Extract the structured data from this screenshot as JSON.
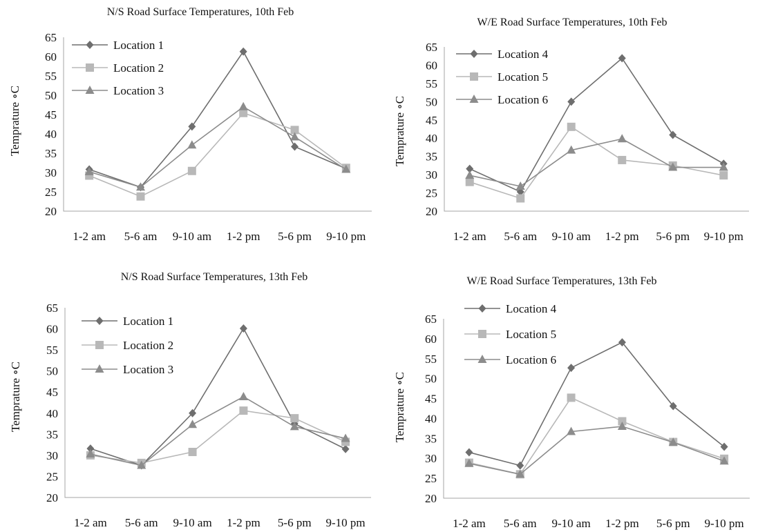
{
  "chart_data": [
    {
      "type": "line",
      "title": "N/S Road Surface Temperatures, 10th Feb",
      "ylabel": "Temprature ∘C",
      "xlabel": "",
      "categories": [
        "1-2 am",
        "5-6 am",
        "9-10 am",
        "1-2 pm",
        "5-6 pm",
        "9-10 pm"
      ],
      "ylim": [
        20,
        65
      ],
      "yticks": [
        20,
        25,
        30,
        35,
        40,
        45,
        50,
        55,
        60,
        65
      ],
      "legend": "top-left",
      "grid": false,
      "series": [
        {
          "name": "Location 1",
          "marker": "diamond",
          "color": "#6e6e6e",
          "values": [
            30.8,
            26.2,
            41.9,
            61.3,
            36.7,
            31.0
          ]
        },
        {
          "name": "Location 2",
          "marker": "square",
          "color": "#b8b8b8",
          "values": [
            29.2,
            23.8,
            30.4,
            45.4,
            41.0,
            31.2
          ]
        },
        {
          "name": "Location 3",
          "marker": "triangle",
          "color": "#8c8c8c",
          "values": [
            30.2,
            26.2,
            37.1,
            47.0,
            39.2,
            30.8
          ]
        }
      ]
    },
    {
      "type": "line",
      "title": "W/E Road Surface Temperatures, 10th Feb",
      "ylabel": "Temprature ∘C",
      "xlabel": "",
      "categories": [
        "1-2 am",
        "5-6 am",
        "9-10 am",
        "1-2 pm",
        "5-6 pm",
        "9-10 pm"
      ],
      "ylim": [
        20,
        65
      ],
      "yticks": [
        20,
        25,
        30,
        35,
        40,
        45,
        50,
        55,
        60,
        65
      ],
      "legend": "top-left",
      "grid": false,
      "series": [
        {
          "name": "Location 4",
          "marker": "diamond",
          "color": "#6e6e6e",
          "values": [
            31.6,
            25.3,
            50.0,
            61.9,
            40.9,
            33.0
          ]
        },
        {
          "name": "Location 5",
          "marker": "square",
          "color": "#b8b8b8",
          "values": [
            28.0,
            23.5,
            43.1,
            34.0,
            32.5,
            29.8
          ]
        },
        {
          "name": "Location 6",
          "marker": "triangle",
          "color": "#8c8c8c",
          "values": [
            29.8,
            26.8,
            36.7,
            39.8,
            32.0,
            32.0
          ]
        }
      ]
    },
    {
      "type": "line",
      "title": "N/S Road Surface Temperatures, 13th Feb",
      "ylabel": "Temprature ∘C",
      "xlabel": "",
      "categories": [
        "1-2 am",
        "5-6 am",
        "9-10 am",
        "1-2 pm",
        "5-6 pm",
        "9-10 pm"
      ],
      "ylim": [
        20,
        65
      ],
      "yticks": [
        20,
        25,
        30,
        35,
        40,
        45,
        50,
        55,
        60,
        65
      ],
      "legend": "top-left",
      "grid": false,
      "series": [
        {
          "name": "Location 1",
          "marker": "diamond",
          "color": "#6e6e6e",
          "values": [
            31.6,
            27.6,
            40.0,
            60.1,
            37.5,
            31.5
          ]
        },
        {
          "name": "Location 2",
          "marker": "square",
          "color": "#b8b8b8",
          "values": [
            30.0,
            28.2,
            30.8,
            40.6,
            38.8,
            33.2
          ]
        },
        {
          "name": "Location 3",
          "marker": "triangle",
          "color": "#8c8c8c",
          "values": [
            30.3,
            27.6,
            37.3,
            43.9,
            36.8,
            34.0
          ]
        }
      ]
    },
    {
      "type": "line",
      "title": "W/E Road Surface Temperatures, 13th Feb",
      "ylabel": "Temprature ∘C",
      "xlabel": "",
      "categories": [
        "1-2 am",
        "5-6 am",
        "9-10 am",
        "1-2 pm",
        "5-6 pm",
        "9-10 pm"
      ],
      "ylim": [
        20,
        65
      ],
      "yticks": [
        20,
        25,
        30,
        35,
        40,
        45,
        50,
        55,
        60,
        65
      ],
      "legend": "top-left",
      "grid": false,
      "series": [
        {
          "name": "Location 4",
          "marker": "diamond",
          "color": "#6e6e6e",
          "values": [
            31.5,
            28.2,
            52.7,
            59.1,
            43.1,
            32.9
          ]
        },
        {
          "name": "Location 5",
          "marker": "square",
          "color": "#b8b8b8",
          "values": [
            28.9,
            26.0,
            45.2,
            39.3,
            34.1,
            29.9
          ]
        },
        {
          "name": "Location 6",
          "marker": "triangle",
          "color": "#8c8c8c",
          "values": [
            28.7,
            26.0,
            36.7,
            38.0,
            34.0,
            29.3
          ]
        }
      ]
    }
  ]
}
